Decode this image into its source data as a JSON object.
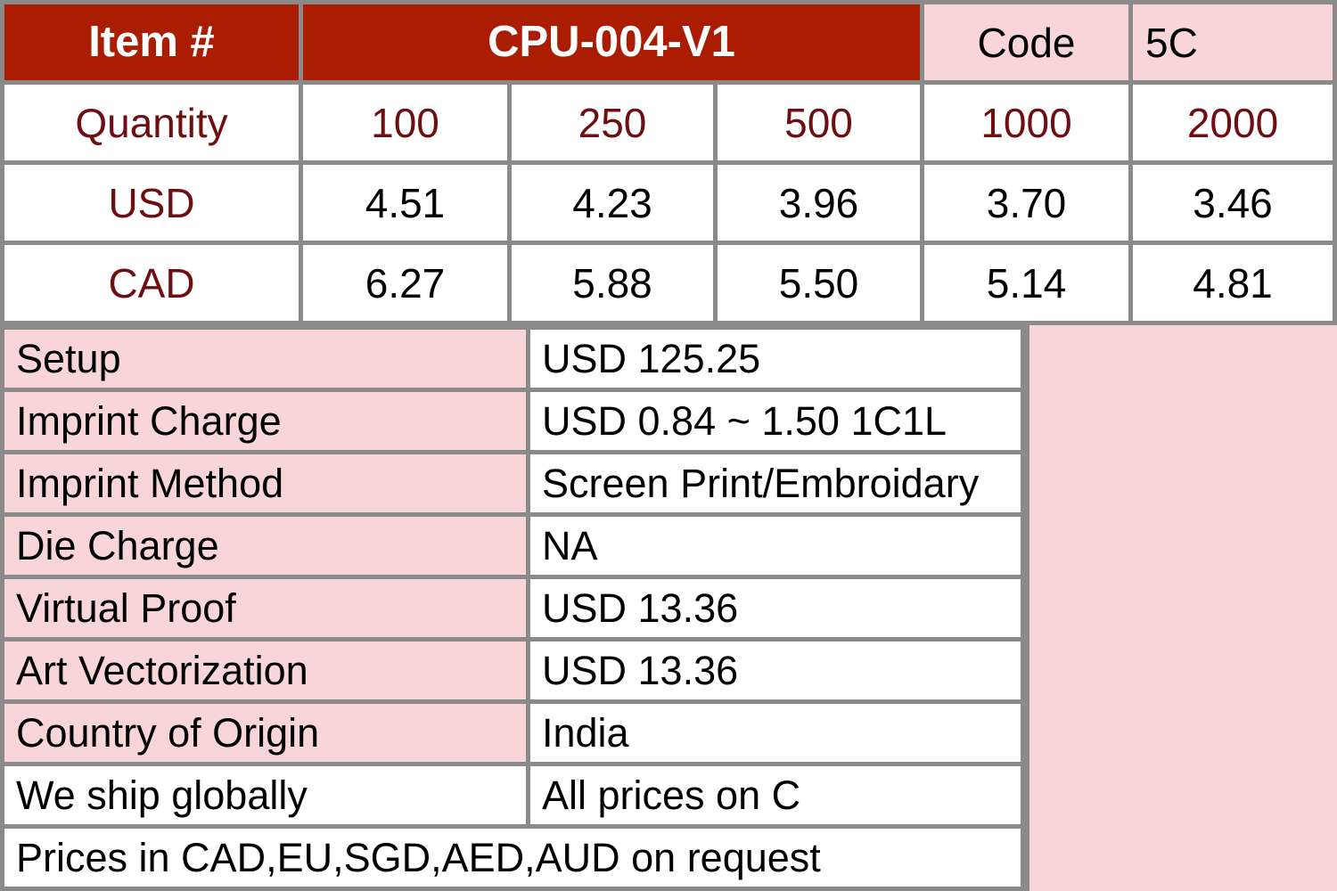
{
  "colors": {
    "header_red": "#aa1d02",
    "accent_maroon": "#6e0e10",
    "pink": "#f8d5d6",
    "grid_gray": "#8a8a8a",
    "text_black": "#000000",
    "text_white": "#ffffff"
  },
  "price_table": {
    "header": {
      "item_label": "Item #",
      "item_value": "CPU-004-V1",
      "code_label": "Code",
      "code_value": "5C"
    },
    "quantity_row": {
      "label": "Quantity",
      "values": [
        "100",
        "250",
        "500",
        "1000",
        "2000"
      ]
    },
    "currency_rows": [
      {
        "label": "USD",
        "values": [
          "4.51",
          "4.23",
          "3.96",
          "3.70",
          "3.46"
        ]
      },
      {
        "label": "CAD",
        "values": [
          "6.27",
          "5.88",
          "5.50",
          "5.14",
          "4.81"
        ]
      }
    ]
  },
  "details_table": {
    "rows": [
      {
        "label": "Setup",
        "value": "USD 125.25"
      },
      {
        "label": "Imprint Charge",
        "value": "USD 0.84 ~ 1.50 1C1L"
      },
      {
        "label": "Imprint Method",
        "value": "Screen Print/Embroidary"
      },
      {
        "label": "Die Charge",
        "value": "NA"
      },
      {
        "label": "Virtual Proof",
        "value": "USD 13.36"
      },
      {
        "label": "Art Vectorization",
        "value": "USD 13.36"
      },
      {
        "label": "Country of Origin",
        "value": "India"
      },
      {
        "label": "We ship globally",
        "value": "All prices on C"
      }
    ],
    "footer": "Prices in CAD,EU,SGD,AED,AUD on request"
  }
}
